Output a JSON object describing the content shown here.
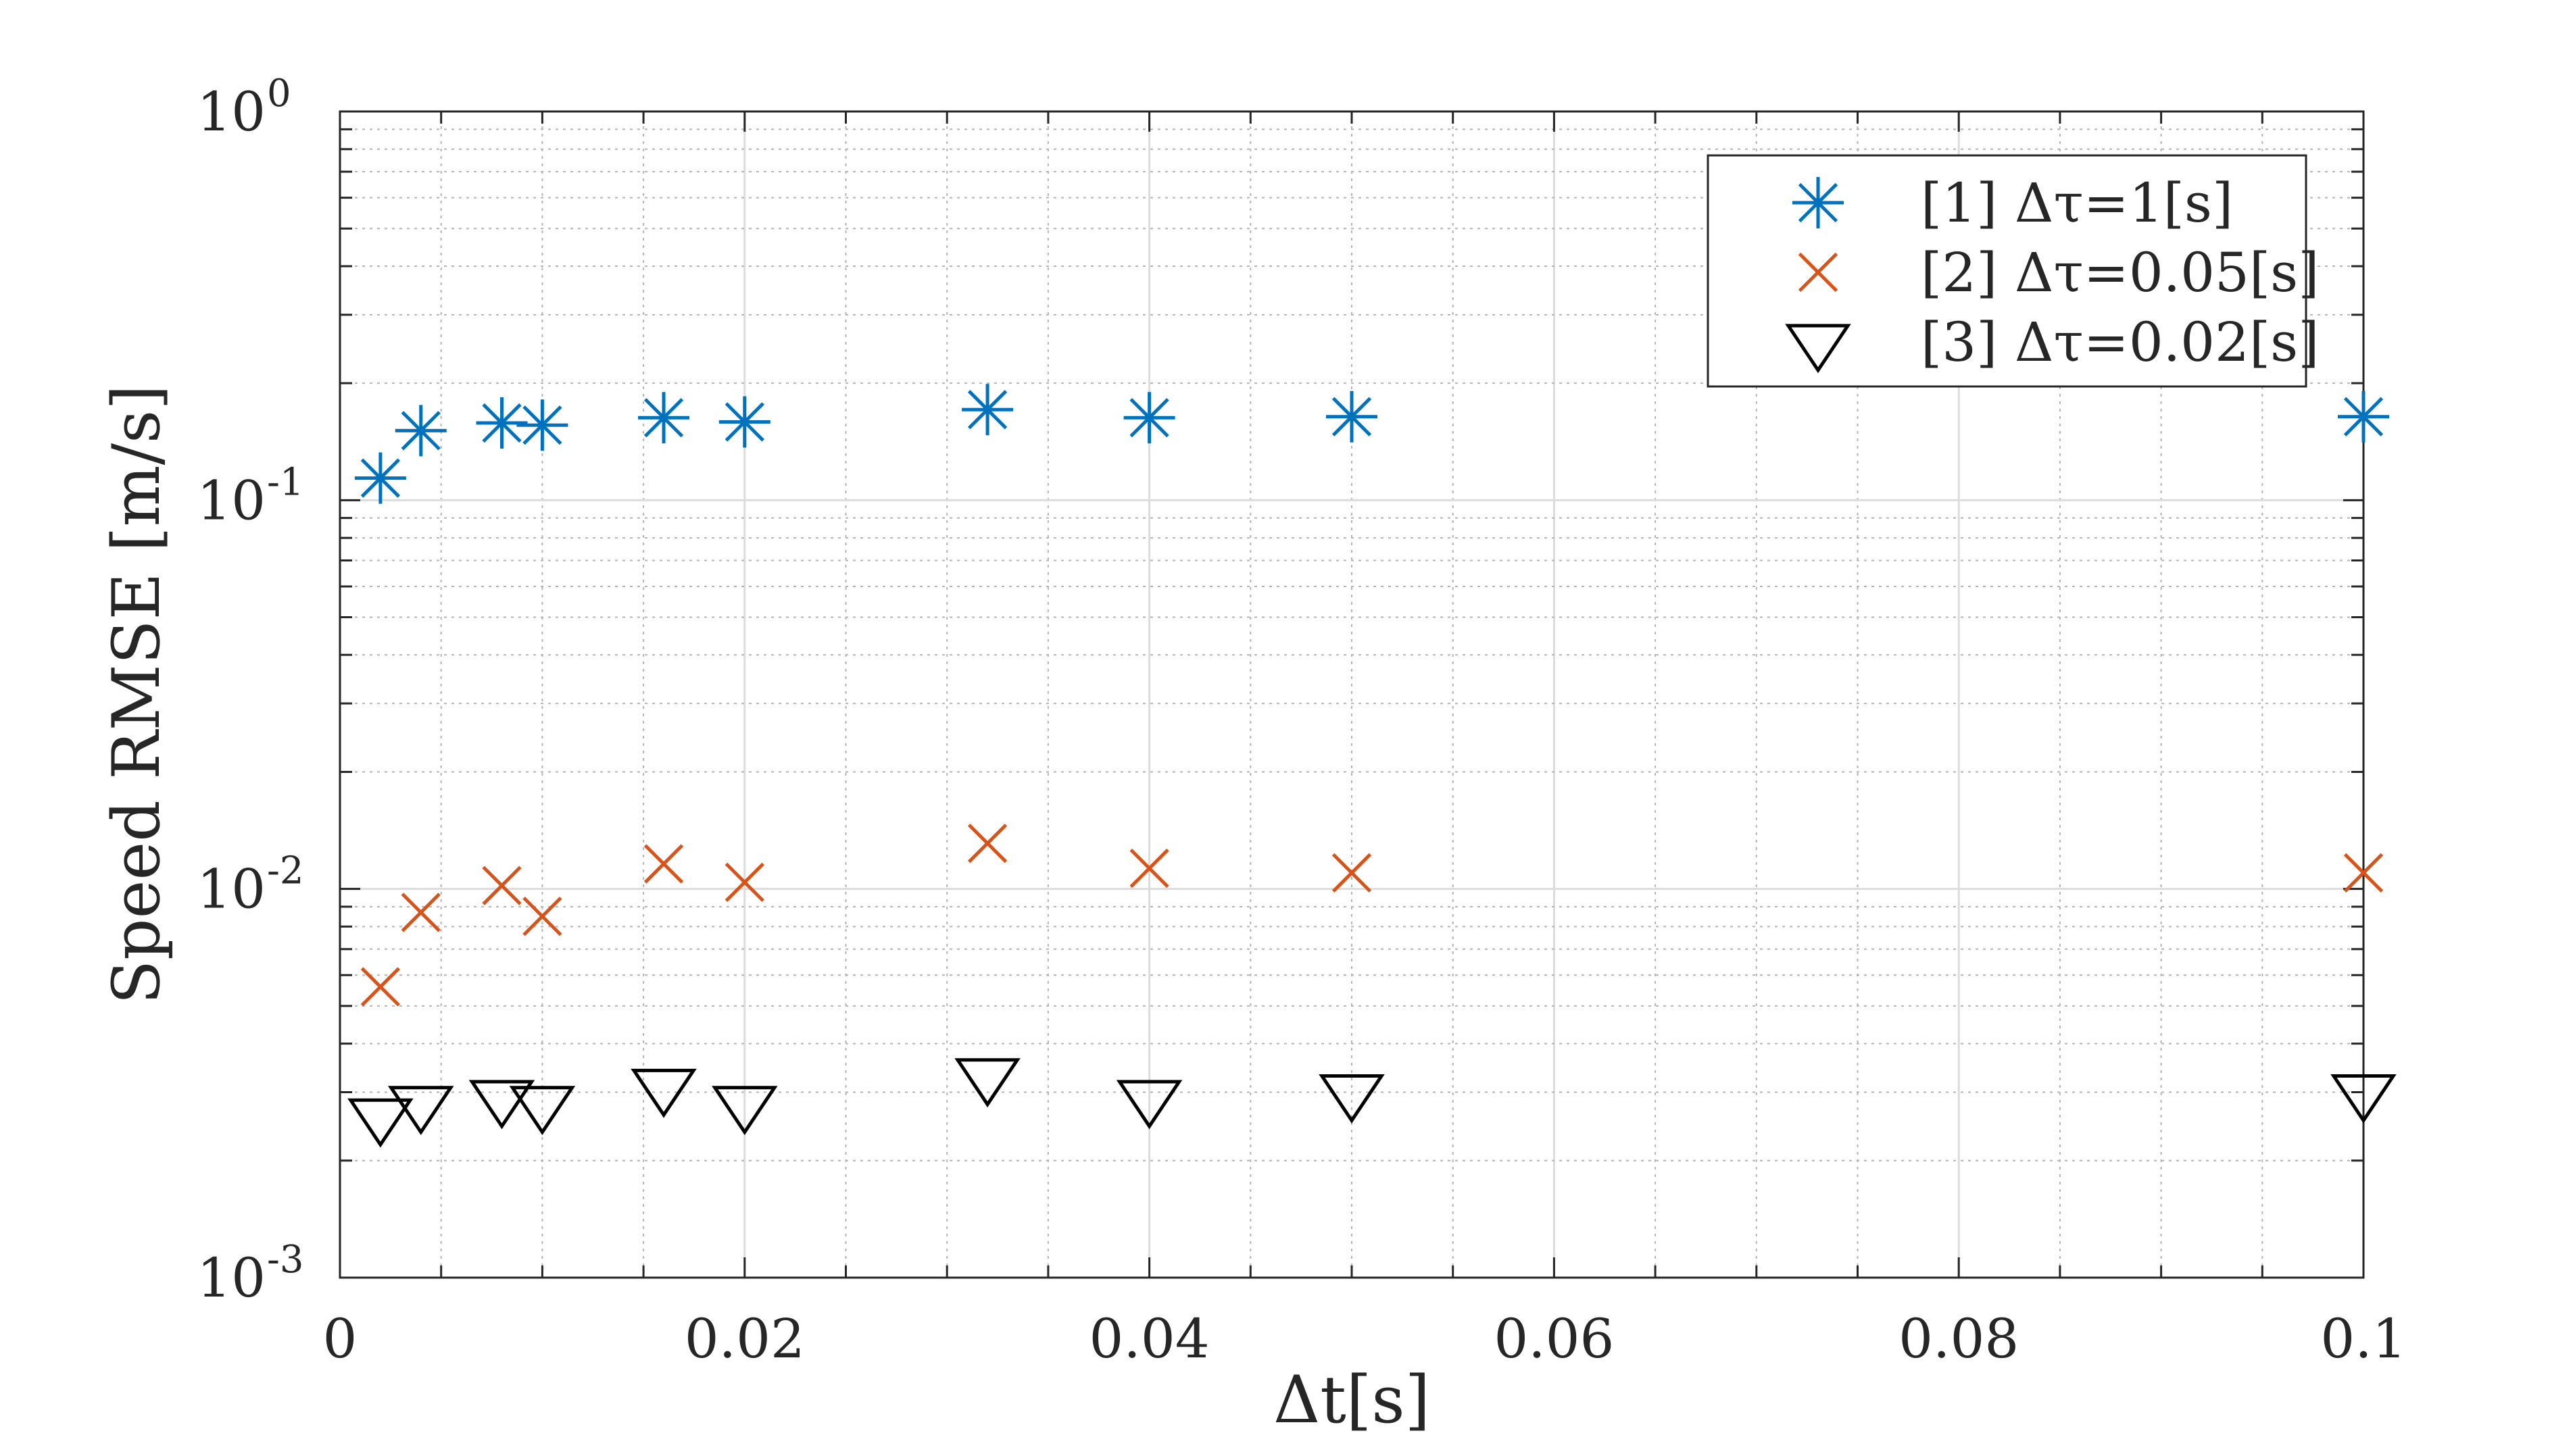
{
  "chart_data": {
    "type": "scatter",
    "title": "",
    "xlabel": "Δt[s]",
    "ylabel": "Speed RMSE [m/s]",
    "xlim": [
      0,
      0.1
    ],
    "ylim": [
      0.001,
      1
    ],
    "y_scale": "log",
    "grid": true,
    "minor_grid": true,
    "legend_position": "top-right",
    "x_ticks": [
      "0",
      "0.02",
      "0.04",
      "0.06",
      "0.08",
      "0.1"
    ],
    "y_ticks": [
      {
        "base": "10",
        "exp": "-3"
      },
      {
        "base": "10",
        "exp": "-2"
      },
      {
        "base": "10",
        "exp": "-1"
      },
      {
        "base": "10",
        "exp": "0"
      }
    ],
    "series": [
      {
        "name": "[1] Δτ=1[s]",
        "marker": "asterisk",
        "color": "#0072BD",
        "x": [
          0.002,
          0.004,
          0.008,
          0.01,
          0.016,
          0.02,
          0.032,
          0.04,
          0.05,
          0.1
        ],
        "y": [
          0.114,
          0.151,
          0.158,
          0.156,
          0.163,
          0.159,
          0.171,
          0.163,
          0.164,
          0.164
        ]
      },
      {
        "name": "[2] Δτ=0.05[s]",
        "marker": "x",
        "color": "#D95319",
        "x": [
          0.002,
          0.004,
          0.008,
          0.01,
          0.016,
          0.02,
          0.032,
          0.04,
          0.05,
          0.1
        ],
        "y": [
          0.0056,
          0.0087,
          0.0102,
          0.0085,
          0.0116,
          0.0104,
          0.0131,
          0.0113,
          0.011,
          0.011
        ]
      },
      {
        "name": "[3] Δτ=0.02[s]",
        "marker": "triangle-down",
        "color": "#000000",
        "x": [
          0.002,
          0.004,
          0.008,
          0.01,
          0.016,
          0.02,
          0.032,
          0.04,
          0.05,
          0.1
        ],
        "y": [
          0.0026,
          0.0028,
          0.0029,
          0.0028,
          0.0031,
          0.0028,
          0.0033,
          0.0029,
          0.003,
          0.003
        ]
      }
    ]
  }
}
